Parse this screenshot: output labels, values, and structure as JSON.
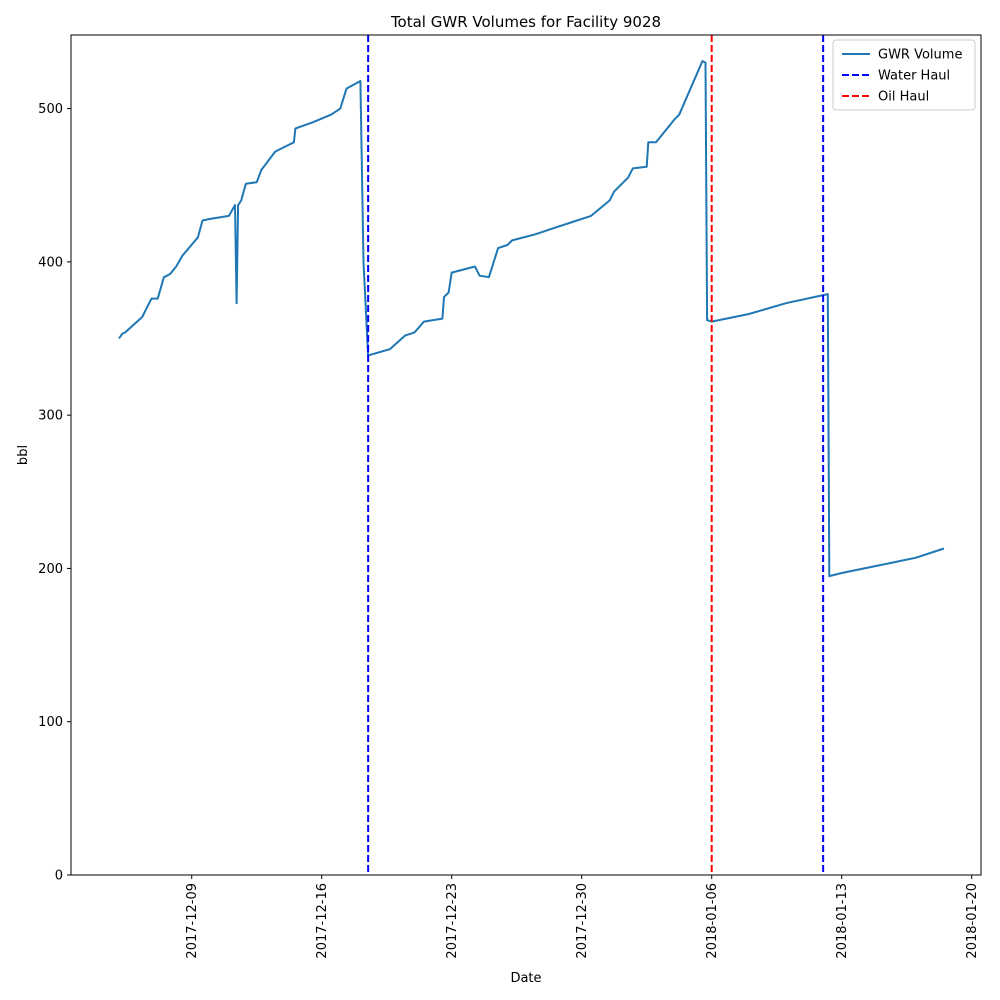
{
  "chart_data": {
    "type": "line",
    "title": "Total GWR Volumes for Facility 9028",
    "xlabel": "Date",
    "ylabel": "bbl",
    "x_range": [
      "2017-12-02T12:00",
      "2018-01-20T12:00"
    ],
    "ylim": [
      0,
      548
    ],
    "x_ticks": [
      "2017-12-09",
      "2017-12-16",
      "2017-12-23",
      "2017-12-30",
      "2018-01-06",
      "2018-01-13",
      "2018-01-20"
    ],
    "y_ticks": [
      0,
      100,
      200,
      300,
      400,
      500
    ],
    "grid": false,
    "legend": {
      "placement": "top-right",
      "entries": [
        "GWR Volume",
        "Water Haul",
        "Oil Haul"
      ]
    },
    "colors": {
      "gwr_volume": "#1f77b4",
      "water_haul": "#0000ff",
      "oil_haul": "#ff0000"
    },
    "series": [
      {
        "name": "GWR Volume",
        "style": "solid",
        "x": [
          "2017-12-05T02:00",
          "2017-12-05T06:00",
          "2017-12-05T10:00",
          "2017-12-06T08:00",
          "2017-12-06T10:00",
          "2017-12-06T20:00",
          "2017-12-07T04:00",
          "2017-12-07T12:00",
          "2017-12-07T20:00",
          "2017-12-08T04:00",
          "2017-12-08T12:00",
          "2017-12-09T08:00",
          "2017-12-09T14:00",
          "2017-12-10T00:00",
          "2017-12-11T00:00",
          "2017-12-11T08:00",
          "2017-12-11T10:00",
          "2017-12-11T12:00",
          "2017-12-11T16:00",
          "2017-12-11T22:00",
          "2017-12-12T12:00",
          "2017-12-12T18:00",
          "2017-12-13T12:00",
          "2017-12-14T00:00",
          "2017-12-14T12:00",
          "2017-12-14T14:00",
          "2017-12-15T12:00",
          "2017-12-16T12:00",
          "2017-12-17T00:00",
          "2017-12-17T08:00",
          "2017-12-18T02:00",
          "2017-12-18T06:00",
          "2017-12-18T12:00",
          "2017-12-19T16:00",
          "2017-12-20T12:00",
          "2017-12-21T00:00",
          "2017-12-21T12:00",
          "2017-12-22T12:00",
          "2017-12-22T14:00",
          "2017-12-22T20:00",
          "2017-12-23T00:00",
          "2017-12-24T06:00",
          "2017-12-24T12:00",
          "2017-12-25T00:00",
          "2017-12-25T12:00",
          "2017-12-26T00:00",
          "2017-12-26T06:00",
          "2017-12-27T12:00",
          "2017-12-28T12:00",
          "2017-12-29T12:00",
          "2017-12-30T12:00",
          "2017-12-31T12:00",
          "2017-12-31T18:00",
          "2018-01-01T12:00",
          "2018-01-01T18:00",
          "2018-01-02T12:00",
          "2018-01-02T14:00",
          "2018-01-03T00:00",
          "2018-01-04T00:00",
          "2018-01-04T06:00",
          "2018-01-05T12:00",
          "2018-01-05T16:00",
          "2018-01-05T18:00",
          "2018-01-06T00:00",
          "2018-01-08T00:00",
          "2018-01-10T00:00",
          "2018-01-12T06:00",
          "2018-01-12T08:00",
          "2018-01-13T00:00",
          "2018-01-15T00:00",
          "2018-01-17T00:00",
          "2018-01-18T12:00"
        ],
        "y": [
          350,
          353,
          354,
          364,
          366,
          376,
          376,
          390,
          392,
          397,
          404,
          416,
          427,
          428,
          430,
          437,
          373,
          437,
          440,
          451,
          452,
          460,
          472,
          475,
          478,
          487,
          491,
          496,
          500,
          513,
          518,
          400,
          339,
          343,
          352,
          354,
          361,
          363,
          377,
          380,
          393,
          397,
          391,
          390,
          409,
          411,
          414,
          418,
          422,
          426,
          430,
          440,
          446,
          455,
          461,
          462,
          478,
          478,
          493,
          496,
          531,
          530,
          362,
          361,
          366,
          373,
          379,
          195,
          197,
          202,
          207,
          213
        ]
      }
    ],
    "vertical_lines": [
      {
        "name": "Water Haul",
        "x": "2017-12-18T12:00",
        "style": "dashed"
      },
      {
        "name": "Oil Haul",
        "x": "2018-01-06T00:00",
        "style": "dashed"
      },
      {
        "name": "Water Haul",
        "x": "2018-01-12T00:00",
        "style": "dashed"
      }
    ]
  }
}
